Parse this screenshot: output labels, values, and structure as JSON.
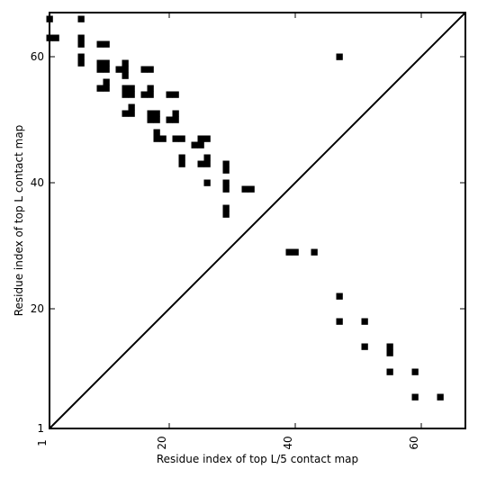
{
  "chart_data": {
    "type": "heatmap",
    "title": "",
    "xlabel": "Residue index of top L/5 contact map",
    "ylabel": "Residue index of top L contact map",
    "xlim": [
      1,
      67
    ],
    "ylim": [
      1,
      67
    ],
    "x_ticks": [
      1,
      20,
      40,
      60
    ],
    "y_ticks": [
      1,
      20,
      40,
      60
    ],
    "x_tick_labels": [
      "1",
      "20",
      "40",
      "60"
    ],
    "y_tick_labels": [
      "1",
      "20",
      "40",
      "60"
    ],
    "x_tick_rotation_deg": -90,
    "diagonal_line": true,
    "grid": false,
    "upper_triangle_contacts": [
      [
        1,
        66
      ],
      [
        6,
        66
      ],
      [
        1,
        63
      ],
      [
        2,
        63
      ],
      [
        6,
        63
      ],
      [
        6,
        62
      ],
      [
        9,
        62
      ],
      [
        10,
        62
      ],
      [
        6,
        60
      ],
      [
        6,
        59
      ],
      [
        9,
        59
      ],
      [
        10,
        59
      ],
      [
        9,
        58
      ],
      [
        10,
        58
      ],
      [
        13,
        59
      ],
      [
        12,
        58
      ],
      [
        13,
        58
      ],
      [
        13,
        57
      ],
      [
        16,
        58
      ],
      [
        17,
        58
      ],
      [
        10,
        56
      ],
      [
        9,
        55
      ],
      [
        10,
        55
      ],
      [
        13,
        55
      ],
      [
        14,
        55
      ],
      [
        13,
        54
      ],
      [
        14,
        54
      ],
      [
        17,
        55
      ],
      [
        16,
        54
      ],
      [
        17,
        54
      ],
      [
        20,
        54
      ],
      [
        21,
        54
      ],
      [
        14,
        52
      ],
      [
        13,
        51
      ],
      [
        14,
        51
      ],
      [
        17,
        51
      ],
      [
        18,
        51
      ],
      [
        17,
        50
      ],
      [
        18,
        50
      ],
      [
        21,
        51
      ],
      [
        20,
        50
      ],
      [
        21,
        50
      ],
      [
        18,
        48
      ],
      [
        18,
        47
      ],
      [
        19,
        47
      ],
      [
        21,
        47
      ],
      [
        22,
        47
      ],
      [
        25,
        47
      ],
      [
        26,
        47
      ],
      [
        24,
        46
      ],
      [
        25,
        46
      ],
      [
        22,
        44
      ],
      [
        22,
        43
      ],
      [
        26,
        44
      ],
      [
        25,
        43
      ],
      [
        26,
        43
      ],
      [
        29,
        43
      ],
      [
        29,
        42
      ],
      [
        26,
        40
      ],
      [
        29,
        40
      ],
      [
        29,
        39
      ],
      [
        32,
        39
      ],
      [
        33,
        39
      ],
      [
        29,
        36
      ],
      [
        29,
        35
      ]
    ],
    "lower_triangle_contacts": [
      [
        47,
        60
      ],
      [
        39,
        29
      ],
      [
        40,
        29
      ],
      [
        43,
        29
      ],
      [
        47,
        22
      ],
      [
        47,
        18
      ],
      [
        51,
        18
      ],
      [
        51,
        14
      ],
      [
        55,
        14
      ],
      [
        55,
        13
      ],
      [
        55,
        10
      ],
      [
        59,
        10
      ],
      [
        59,
        6
      ],
      [
        63,
        6
      ]
    ]
  }
}
